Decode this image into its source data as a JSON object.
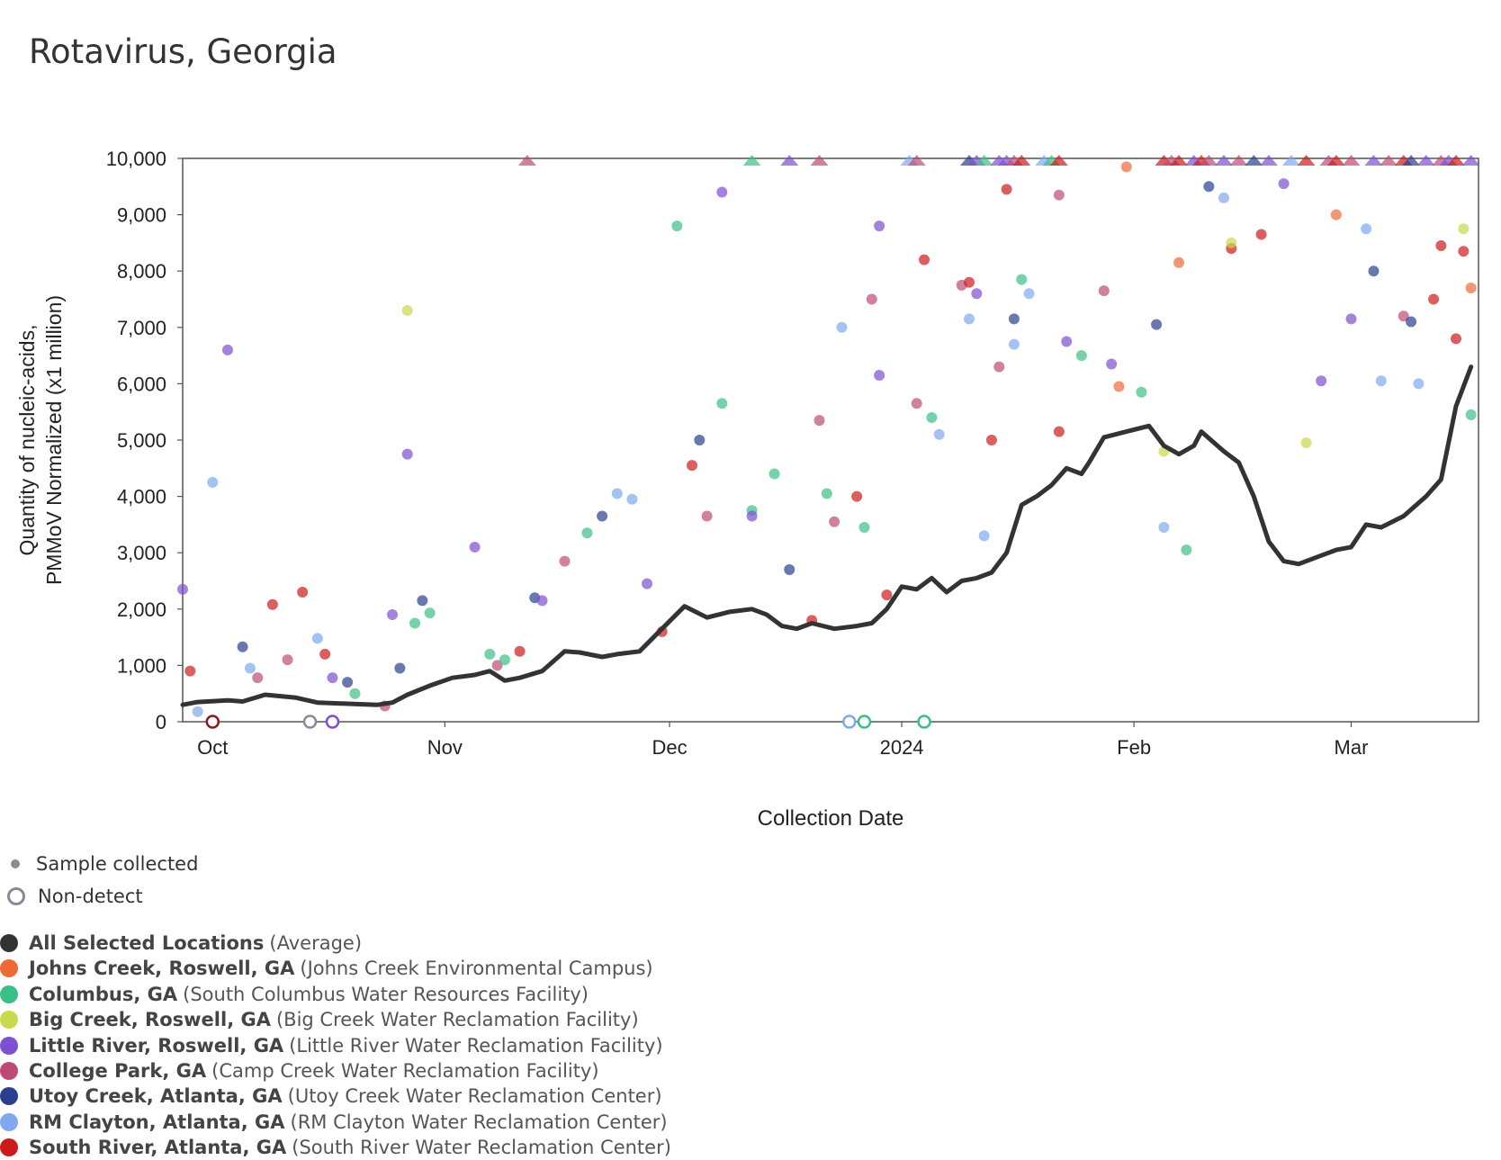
{
  "chart_data": {
    "type": "scatter",
    "title": "Rotavirus, Georgia",
    "xlabel": "Collection Date",
    "ylabel": "Quantity of nucleic-acids, PMMoV Normalized (x1 million)",
    "ylabel_lines": [
      "Quantity of nucleic-acids,",
      "PMMoV Normalized (x1 million)"
    ],
    "ylim": [
      0,
      10000
    ],
    "y_ticks": [
      "0",
      "1,000",
      "2,000",
      "3,000",
      "4,000",
      "5,000",
      "6,000",
      "7,000",
      "8,000",
      "9,000",
      "10,000"
    ],
    "x_ticks": [
      {
        "label": "Oct",
        "date": "2023-10-01"
      },
      {
        "label": "Nov",
        "date": "2023-11-01"
      },
      {
        "label": "Dec",
        "date": "2023-12-01"
      },
      {
        "label": "2024",
        "date": "2024-01-01"
      },
      {
        "label": "Feb",
        "date": "2024-02-01"
      },
      {
        "label": "Mar",
        "date": "2024-03-01"
      }
    ],
    "xlim": [
      "2023-09-27",
      "2024-03-18"
    ],
    "grid": false,
    "legend_position": "bottom-left",
    "marker_legend": {
      "sample": "Sample collected",
      "nondetect": "Non-detect"
    },
    "series": [
      {
        "name": "All Selected Locations",
        "facility": "(Average)",
        "color": "#333333"
      },
      {
        "name": "Johns Creek, Roswell, GA",
        "facility": "(Johns Creek Environmental Campus)",
        "color": "#ee6a37"
      },
      {
        "name": "Columbus, GA",
        "facility": "(South Columbus Water Resources Facility)",
        "color": "#3cbf84"
      },
      {
        "name": "Big Creek, Roswell, GA",
        "facility": "(Big Creek Water Reclamation Facility)",
        "color": "#c9d94c"
      },
      {
        "name": "Little River, Roswell, GA",
        "facility": "(Little River Water Reclamation Facility)",
        "color": "#7d4fd1"
      },
      {
        "name": "College Park, GA",
        "facility": "(Camp Creek Water Reclamation Facility)",
        "color": "#bd4a76"
      },
      {
        "name": "Utoy Creek, Atlanta, GA",
        "facility": "(Utoy Creek Water Reclamation Center)",
        "color": "#2b3f8e"
      },
      {
        "name": "RM Clayton, Atlanta, GA",
        "facility": "(RM Clayton Water Reclamation Center)",
        "color": "#7fa8f0"
      },
      {
        "name": "South River, Atlanta, GA",
        "facility": "(South River Water Reclamation Center)",
        "color": "#cc1b1b"
      }
    ],
    "average_line": [
      [
        "2023-09-27",
        300
      ],
      [
        "2023-09-29",
        350
      ],
      [
        "2023-10-03",
        380
      ],
      [
        "2023-10-05",
        360
      ],
      [
        "2023-10-08",
        480
      ],
      [
        "2023-10-12",
        430
      ],
      [
        "2023-10-15",
        340
      ],
      [
        "2023-10-19",
        320
      ],
      [
        "2023-10-23",
        300
      ],
      [
        "2023-10-25",
        340
      ],
      [
        "2023-10-27",
        480
      ],
      [
        "2023-10-30",
        640
      ],
      [
        "2023-11-02",
        780
      ],
      [
        "2023-11-05",
        830
      ],
      [
        "2023-11-07",
        900
      ],
      [
        "2023-11-09",
        730
      ],
      [
        "2023-11-11",
        780
      ],
      [
        "2023-11-14",
        900
      ],
      [
        "2023-11-17",
        1250
      ],
      [
        "2023-11-19",
        1230
      ],
      [
        "2023-11-22",
        1150
      ],
      [
        "2023-11-24",
        1200
      ],
      [
        "2023-11-27",
        1250
      ],
      [
        "2023-11-30",
        1650
      ],
      [
        "2023-12-03",
        2050
      ],
      [
        "2023-12-06",
        1850
      ],
      [
        "2023-12-09",
        1950
      ],
      [
        "2023-12-12",
        2000
      ],
      [
        "2023-12-14",
        1900
      ],
      [
        "2023-12-16",
        1700
      ],
      [
        "2023-12-18",
        1650
      ],
      [
        "2023-12-20",
        1750
      ],
      [
        "2023-12-23",
        1650
      ],
      [
        "2023-12-26",
        1700
      ],
      [
        "2023-12-28",
        1750
      ],
      [
        "2023-12-30",
        2000
      ],
      [
        "2024-01-01",
        2400
      ],
      [
        "2024-01-03",
        2350
      ],
      [
        "2024-01-05",
        2550
      ],
      [
        "2024-01-07",
        2300
      ],
      [
        "2024-01-09",
        2500
      ],
      [
        "2024-01-11",
        2550
      ],
      [
        "2024-01-13",
        2650
      ],
      [
        "2024-01-15",
        3000
      ],
      [
        "2024-01-17",
        3850
      ],
      [
        "2024-01-19",
        4000
      ],
      [
        "2024-01-21",
        4200
      ],
      [
        "2024-01-23",
        4500
      ],
      [
        "2024-01-25",
        4400
      ],
      [
        "2024-01-26",
        4600
      ],
      [
        "2024-01-28",
        5050
      ],
      [
        "2024-01-31",
        5150
      ],
      [
        "2024-02-03",
        5250
      ],
      [
        "2024-02-05",
        4900
      ],
      [
        "2024-02-07",
        4750
      ],
      [
        "2024-02-09",
        4900
      ],
      [
        "2024-02-10",
        5150
      ],
      [
        "2024-02-13",
        4800
      ],
      [
        "2024-02-15",
        4600
      ],
      [
        "2024-02-17",
        4000
      ],
      [
        "2024-02-19",
        3200
      ],
      [
        "2024-02-21",
        2850
      ],
      [
        "2024-02-23",
        2800
      ],
      [
        "2024-02-26",
        2950
      ],
      [
        "2024-02-28",
        3050
      ],
      [
        "2024-03-01",
        3100
      ],
      [
        "2024-03-03",
        3500
      ],
      [
        "2024-03-05",
        3450
      ],
      [
        "2024-03-08",
        3650
      ],
      [
        "2024-03-11",
        4000
      ],
      [
        "2024-03-13",
        4300
      ],
      [
        "2024-03-15",
        5600
      ],
      [
        "2024-03-17",
        6300
      ]
    ],
    "points": [
      [
        "2023-09-27",
        2350,
        "#7d4fd1"
      ],
      [
        "2023-09-28",
        900,
        "#cc1b1b"
      ],
      [
        "2023-09-29",
        180,
        "#7fa8f0"
      ],
      [
        "2023-10-01",
        4250,
        "#7fa8f0"
      ],
      [
        "2023-10-03",
        6600,
        "#7d4fd1"
      ],
      [
        "2023-10-05",
        1330,
        "#2b3f8e"
      ],
      [
        "2023-10-06",
        950,
        "#7fa8f0"
      ],
      [
        "2023-10-07",
        780,
        "#bd4a76"
      ],
      [
        "2023-10-09",
        2080,
        "#cc1b1b"
      ],
      [
        "2023-10-11",
        1100,
        "#bd4a76"
      ],
      [
        "2023-10-13",
        2300,
        "#cc1b1b"
      ],
      [
        "2023-10-15",
        1480,
        "#7fa8f0"
      ],
      [
        "2023-10-16",
        1200,
        "#cc1b1b"
      ],
      [
        "2023-10-17",
        780,
        "#7d4fd1"
      ],
      [
        "2023-10-19",
        700,
        "#2b3f8e"
      ],
      [
        "2023-10-20",
        500,
        "#3cbf84"
      ],
      [
        "2023-10-24",
        280,
        "#bd4a76"
      ],
      [
        "2023-10-27",
        7300,
        "#c9d94c"
      ],
      [
        "2023-10-27",
        4750,
        "#7d4fd1"
      ],
      [
        "2023-10-28",
        1750,
        "#3cbf84"
      ],
      [
        "2023-10-29",
        2150,
        "#2b3f8e"
      ],
      [
        "2023-10-30",
        1930,
        "#3cbf84"
      ],
      [
        "2023-10-25",
        1900,
        "#7d4fd1"
      ],
      [
        "2023-10-26",
        950,
        "#2b3f8e"
      ],
      [
        "2023-11-05",
        3100,
        "#7d4fd1"
      ],
      [
        "2023-11-07",
        1200,
        "#3cbf84"
      ],
      [
        "2023-11-08",
        1000,
        "#bd4a76"
      ],
      [
        "2023-11-09",
        1100,
        "#3cbf84"
      ],
      [
        "2023-11-11",
        1250,
        "#cc1b1b"
      ],
      [
        "2023-11-13",
        2200,
        "#2b3f8e"
      ],
      [
        "2023-11-14",
        2150,
        "#7d4fd1"
      ],
      [
        "2023-11-17",
        2850,
        "#bd4a76"
      ],
      [
        "2023-11-20",
        3350,
        "#3cbf84"
      ],
      [
        "2023-11-22",
        3650,
        "#2b3f8e"
      ],
      [
        "2023-11-24",
        4050,
        "#7fa8f0"
      ],
      [
        "2023-11-26",
        3950,
        "#7fa8f0"
      ],
      [
        "2023-11-28",
        2450,
        "#7d4fd1"
      ],
      [
        "2023-11-30",
        1600,
        "#cc1b1b"
      ],
      [
        "2023-12-02",
        8800,
        "#3cbf84"
      ],
      [
        "2023-12-04",
        4550,
        "#cc1b1b"
      ],
      [
        "2023-12-05",
        5000,
        "#2b3f8e"
      ],
      [
        "2023-12-06",
        3650,
        "#bd4a76"
      ],
      [
        "2023-12-08",
        9400,
        "#7d4fd1"
      ],
      [
        "2023-12-08",
        5650,
        "#3cbf84"
      ],
      [
        "2023-12-12",
        3750,
        "#3cbf84"
      ],
      [
        "2023-12-12",
        3650,
        "#7d4fd1"
      ],
      [
        "2023-12-15",
        4400,
        "#3cbf84"
      ],
      [
        "2023-12-17",
        2700,
        "#2b3f8e"
      ],
      [
        "2023-12-20",
        1800,
        "#cc1b1b"
      ],
      [
        "2023-12-21",
        5350,
        "#bd4a76"
      ],
      [
        "2023-12-22",
        4050,
        "#3cbf84"
      ],
      [
        "2023-12-23",
        3550,
        "#bd4a76"
      ],
      [
        "2023-12-24",
        7000,
        "#7fa8f0"
      ],
      [
        "2023-12-26",
        4000,
        "#cc1b1b"
      ],
      [
        "2023-12-27",
        3450,
        "#3cbf84"
      ],
      [
        "2023-12-28",
        7500,
        "#bd4a76"
      ],
      [
        "2023-12-29",
        8800,
        "#7d4fd1"
      ],
      [
        "2023-12-29",
        6150,
        "#7d4fd1"
      ],
      [
        "2023-12-30",
        2250,
        "#cc1b1b"
      ],
      [
        "2024-01-03",
        5650,
        "#bd4a76"
      ],
      [
        "2024-01-04",
        8200,
        "#cc1b1b"
      ],
      [
        "2024-01-05",
        5400,
        "#3cbf84"
      ],
      [
        "2024-01-06",
        5100,
        "#7fa8f0"
      ],
      [
        "2024-01-09",
        7750,
        "#bd4a76"
      ],
      [
        "2024-01-10",
        7800,
        "#cc1b1b"
      ],
      [
        "2024-01-10",
        7150,
        "#7fa8f0"
      ],
      [
        "2024-01-11",
        7600,
        "#7d4fd1"
      ],
      [
        "2024-01-12",
        3300,
        "#7fa8f0"
      ],
      [
        "2024-01-13",
        5000,
        "#cc1b1b"
      ],
      [
        "2024-01-14",
        6300,
        "#bd4a76"
      ],
      [
        "2024-01-15",
        9450,
        "#cc1b1b"
      ],
      [
        "2024-01-16",
        7150,
        "#2b3f8e"
      ],
      [
        "2024-01-16",
        6700,
        "#7fa8f0"
      ],
      [
        "2024-01-17",
        7850,
        "#3cbf84"
      ],
      [
        "2024-01-18",
        7600,
        "#7fa8f0"
      ],
      [
        "2024-01-22",
        9350,
        "#bd4a76"
      ],
      [
        "2024-01-22",
        5150,
        "#cc1b1b"
      ],
      [
        "2024-01-23",
        6750,
        "#7d4fd1"
      ],
      [
        "2024-01-25",
        6500,
        "#3cbf84"
      ],
      [
        "2024-01-28",
        7650,
        "#bd4a76"
      ],
      [
        "2024-01-29",
        6350,
        "#7d4fd1"
      ],
      [
        "2024-01-30",
        5950,
        "#ee6a37"
      ],
      [
        "2024-01-31",
        9850,
        "#ee6a37"
      ],
      [
        "2024-02-02",
        5850,
        "#3cbf84"
      ],
      [
        "2024-02-04",
        7050,
        "#2b3f8e"
      ],
      [
        "2024-02-05",
        4800,
        "#c9d94c"
      ],
      [
        "2024-02-05",
        3450,
        "#7fa8f0"
      ],
      [
        "2024-02-07",
        8150,
        "#ee6a37"
      ],
      [
        "2024-02-08",
        3050,
        "#3cbf84"
      ],
      [
        "2024-02-11",
        9500,
        "#2b3f8e"
      ],
      [
        "2024-02-13",
        9300,
        "#7fa8f0"
      ],
      [
        "2024-02-14",
        8400,
        "#cc1b1b"
      ],
      [
        "2024-02-14",
        8500,
        "#c9d94c"
      ],
      [
        "2024-02-18",
        8650,
        "#cc1b1b"
      ],
      [
        "2024-02-21",
        9550,
        "#7d4fd1"
      ],
      [
        "2024-02-24",
        4950,
        "#c9d94c"
      ],
      [
        "2024-02-26",
        6050,
        "#7d4fd1"
      ],
      [
        "2024-02-28",
        9000,
        "#ee6a37"
      ],
      [
        "2024-03-01",
        7150,
        "#7d4fd1"
      ],
      [
        "2024-03-03",
        8750,
        "#7fa8f0"
      ],
      [
        "2024-03-04",
        8000,
        "#2b3f8e"
      ],
      [
        "2024-03-05",
        6050,
        "#7fa8f0"
      ],
      [
        "2024-03-08",
        7200,
        "#bd4a76"
      ],
      [
        "2024-03-09",
        7100,
        "#2b3f8e"
      ],
      [
        "2024-03-10",
        6000,
        "#7fa8f0"
      ],
      [
        "2024-03-12",
        7500,
        "#cc1b1b"
      ],
      [
        "2024-03-13",
        8450,
        "#cc1b1b"
      ],
      [
        "2024-03-15",
        6800,
        "#cc1b1b"
      ],
      [
        "2024-03-16",
        8350,
        "#cc1b1b"
      ],
      [
        "2024-03-16",
        8750,
        "#c9d94c"
      ],
      [
        "2024-03-17",
        5450,
        "#3cbf84"
      ],
      [
        "2024-03-17",
        7700,
        "#ee6a37"
      ]
    ],
    "nondetects": [
      [
        "2023-10-01",
        "#8b1a1a"
      ],
      [
        "2023-10-14",
        "#8a8a96"
      ],
      [
        "2023-10-17",
        "#7d4fd1"
      ],
      [
        "2023-12-25",
        "#7fa8f0"
      ],
      [
        "2023-12-27",
        "#3cbf84"
      ],
      [
        "2024-01-04",
        "#3cbf84"
      ]
    ],
    "overflow_markers": [
      [
        "2023-11-12",
        "#bd4a76"
      ],
      [
        "2023-12-12",
        "#3cbf84"
      ],
      [
        "2023-12-17",
        "#7d4fd1"
      ],
      [
        "2023-12-21",
        "#bd4a76"
      ],
      [
        "2024-01-02",
        "#7fa8f0"
      ],
      [
        "2024-01-03",
        "#bd4a76"
      ],
      [
        "2024-01-10",
        "#2b3f8e"
      ],
      [
        "2024-01-11",
        "#7d4fd1"
      ],
      [
        "2024-01-12",
        "#3cbf84"
      ],
      [
        "2024-01-14",
        "#7d4fd1"
      ],
      [
        "2024-01-15",
        "#7d4fd1"
      ],
      [
        "2024-01-16",
        "#bd4a76"
      ],
      [
        "2024-01-17",
        "#cc1b1b"
      ],
      [
        "2024-01-20",
        "#7fa8f0"
      ],
      [
        "2024-01-21",
        "#3cbf84"
      ],
      [
        "2024-01-22",
        "#cc1b1b"
      ],
      [
        "2024-02-05",
        "#cc1b1b"
      ],
      [
        "2024-02-06",
        "#bd4a76"
      ],
      [
        "2024-02-07",
        "#cc1b1b"
      ],
      [
        "2024-02-09",
        "#7d4fd1"
      ],
      [
        "2024-02-10",
        "#cc1b1b"
      ],
      [
        "2024-02-11",
        "#bd4a76"
      ],
      [
        "2024-02-13",
        "#7d4fd1"
      ],
      [
        "2024-02-15",
        "#bd4a76"
      ],
      [
        "2024-02-17",
        "#2b3f8e"
      ],
      [
        "2024-02-19",
        "#7d4fd1"
      ],
      [
        "2024-02-22",
        "#7fa8f0"
      ],
      [
        "2024-02-24",
        "#cc1b1b"
      ],
      [
        "2024-02-27",
        "#bd4a76"
      ],
      [
        "2024-02-28",
        "#cc1b1b"
      ],
      [
        "2024-03-01",
        "#bd4a76"
      ],
      [
        "2024-03-04",
        "#7d4fd1"
      ],
      [
        "2024-03-06",
        "#bd4a76"
      ],
      [
        "2024-03-08",
        "#cc1b1b"
      ],
      [
        "2024-03-09",
        "#2b3f8e"
      ],
      [
        "2024-03-11",
        "#7d4fd1"
      ],
      [
        "2024-03-13",
        "#bd4a76"
      ],
      [
        "2024-03-14",
        "#7d4fd1"
      ],
      [
        "2024-03-15",
        "#cc1b1b"
      ],
      [
        "2024-03-17",
        "#7d4fd1"
      ]
    ]
  }
}
